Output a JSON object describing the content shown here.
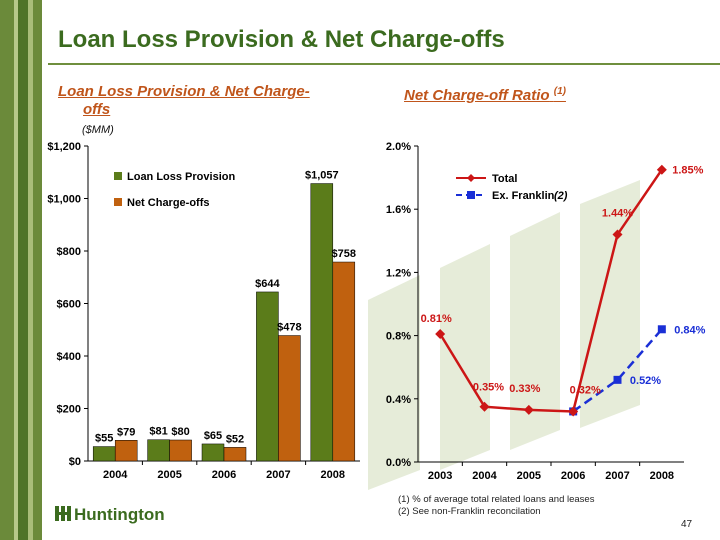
{
  "title": "Loan Loss Provision & Net Charge-offs",
  "left_subtitle_line1": "Loan Loss Provision & Net Charge-",
  "left_subtitle_line2": "offs",
  "units": "($MM)",
  "right_subtitle": "Net Charge-off Ratio",
  "right_subtitle_ref": "(1)",
  "footnotes": [
    "(1)   % of average  total related loans and leases",
    "(2)   See non-Franklin reconcilation"
  ],
  "page_number": "47",
  "logo_text": "Huntington",
  "colors": {
    "title": "#3b6b1f",
    "subtitle": "#c0551b",
    "provision": "#5b7c1a",
    "chargeoffs": "#c0610f",
    "total": "#cc1616",
    "ex_franklin": "#1a2fd6"
  },
  "chart_data": [
    {
      "type": "bar",
      "categories": [
        "2004",
        "2005",
        "2006",
        "2007",
        "2008"
      ],
      "series": [
        {
          "name": "Loan Loss Provision",
          "values": [
            55,
            81,
            65,
            644,
            1057
          ],
          "labels": [
            "$55",
            "$81",
            "$65",
            "$644",
            "$1,057"
          ]
        },
        {
          "name": "Net Charge-offs",
          "values": [
            79,
            80,
            52,
            478,
            758
          ],
          "labels": [
            "$79",
            "$80",
            "$52",
            "$478",
            "$758"
          ]
        }
      ],
      "ylim": [
        0,
        1200
      ],
      "yticks": [
        0,
        200,
        400,
        600,
        800,
        1000,
        1200
      ],
      "ytick_labels": [
        "$0",
        "$200",
        "$400",
        "$600",
        "$800",
        "$1,000",
        "$1,200"
      ],
      "legend": "top-left"
    },
    {
      "type": "line",
      "categories": [
        "2003",
        "2004",
        "2005",
        "2006",
        "2007",
        "2008"
      ],
      "series": [
        {
          "name": "Total",
          "values": [
            0.81,
            0.35,
            0.33,
            0.32,
            1.44,
            1.85
          ],
          "labels": [
            "0.81%",
            "0.35%",
            "0.33%",
            "0.32%",
            "1.44%",
            "1.85%"
          ]
        },
        {
          "name": "Ex. Franklin",
          "name_ref": "(2)",
          "values": [
            null,
            null,
            null,
            0.32,
            0.52,
            0.84
          ],
          "labels": [
            "",
            "",
            "",
            "",
            "0.52%",
            "0.84%"
          ]
        }
      ],
      "ylim": [
        0,
        2.0
      ],
      "yticks": [
        0,
        0.4,
        0.8,
        1.2,
        1.6,
        2.0
      ],
      "ytick_labels": [
        "0.0%",
        "0.4%",
        "0.8%",
        "1.2%",
        "1.6%",
        "2.0%"
      ],
      "legend": "top-left"
    }
  ]
}
